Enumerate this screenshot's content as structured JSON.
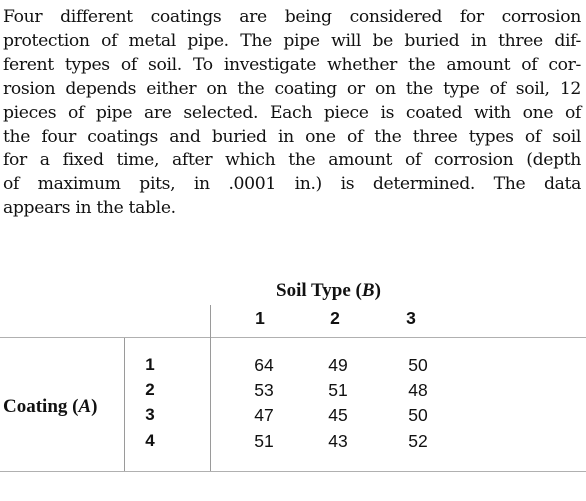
{
  "paragraph_lines": [
    "Four different coatings are being considered for corrosion",
    "protection of metal pipe. The pipe will be buried in three dif-",
    "ferent types of soil. To investigate whether the amount of cor-",
    "rosion depends either on the coating or on the type of soil, 12",
    "pieces of pipe are selected. Each piece is coated with one of",
    "the four coatings and buried in one of the three types of soil",
    "for a fixed time, after which the amount of corrosion (depth",
    "of maximum pits, in .0001 in.) is determined. The data",
    "appears in the table."
  ],
  "table": {
    "column_header_title": "Soil Type (",
    "column_header_var": "B",
    "column_header_close": ")",
    "columns": [
      "1",
      "2",
      "3"
    ],
    "row_header_title": "Coating (",
    "row_header_var": "A",
    "row_header_close": ")",
    "rows": [
      {
        "label": "1",
        "values": [
          "64",
          "49",
          "50"
        ]
      },
      {
        "label": "2",
        "values": [
          "53",
          "51",
          "48"
        ]
      },
      {
        "label": "3",
        "values": [
          "47",
          "45",
          "50"
        ]
      },
      {
        "label": "4",
        "values": [
          "51",
          "43",
          "52"
        ]
      }
    ]
  }
}
